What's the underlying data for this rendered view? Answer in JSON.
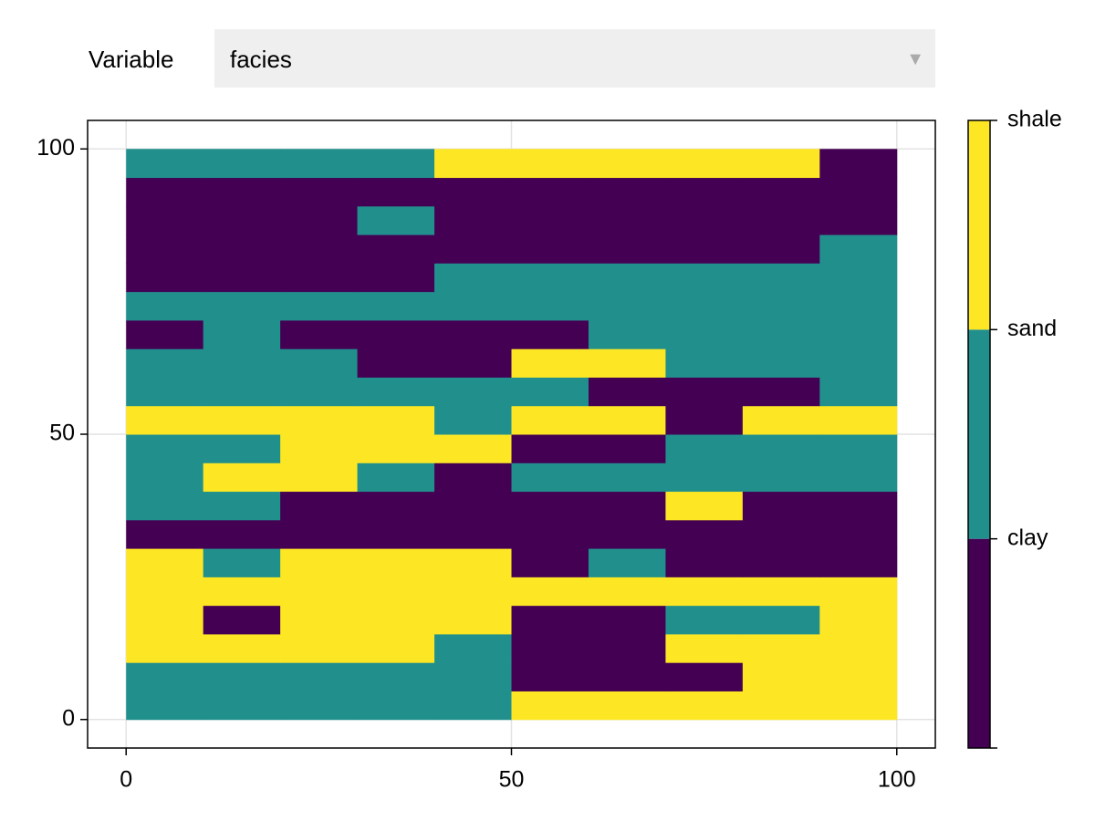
{
  "control": {
    "label": "Variable",
    "selected": "facies"
  },
  "chart_data": {
    "type": "heatmap",
    "x": [
      0,
      10,
      20,
      30,
      40,
      50,
      60,
      70,
      80,
      90,
      100
    ],
    "y": [
      0,
      5,
      10,
      15,
      20,
      25,
      30,
      35,
      40,
      45,
      50,
      55,
      60,
      65,
      70,
      75,
      80,
      85,
      90,
      95,
      100
    ],
    "z": [
      [
        2,
        2,
        2,
        2,
        2,
        3,
        3,
        3,
        3,
        3
      ],
      [
        2,
        2,
        2,
        2,
        2,
        1,
        1,
        1,
        3,
        3
      ],
      [
        3,
        3,
        3,
        3,
        2,
        1,
        1,
        3,
        3,
        3
      ],
      [
        3,
        1,
        3,
        3,
        3,
        1,
        1,
        2,
        2,
        3
      ],
      [
        3,
        3,
        3,
        3,
        3,
        3,
        3,
        3,
        3,
        3
      ],
      [
        3,
        2,
        3,
        3,
        3,
        1,
        2,
        1,
        1,
        1
      ],
      [
        1,
        1,
        1,
        1,
        1,
        1,
        1,
        1,
        1,
        1
      ],
      [
        2,
        2,
        1,
        1,
        1,
        1,
        1,
        3,
        1,
        1
      ],
      [
        2,
        3,
        3,
        2,
        1,
        2,
        2,
        2,
        2,
        2
      ],
      [
        2,
        2,
        3,
        3,
        3,
        1,
        1,
        2,
        2,
        2
      ],
      [
        3,
        3,
        3,
        3,
        2,
        3,
        3,
        1,
        3,
        3
      ],
      [
        2,
        2,
        2,
        2,
        2,
        2,
        1,
        1,
        1,
        2
      ],
      [
        2,
        2,
        2,
        1,
        1,
        3,
        3,
        2,
        2,
        2
      ],
      [
        1,
        2,
        1,
        1,
        1,
        1,
        2,
        2,
        2,
        2
      ],
      [
        2,
        2,
        2,
        2,
        2,
        2,
        2,
        2,
        2,
        2
      ],
      [
        1,
        1,
        1,
        1,
        2,
        2,
        2,
        2,
        2,
        2
      ],
      [
        1,
        1,
        1,
        1,
        1,
        1,
        1,
        1,
        1,
        2
      ],
      [
        1,
        1,
        1,
        2,
        1,
        1,
        1,
        1,
        1,
        1
      ],
      [
        1,
        1,
        1,
        1,
        1,
        1,
        1,
        1,
        1,
        1
      ],
      [
        2,
        2,
        2,
        2,
        3,
        3,
        3,
        3,
        3,
        1
      ]
    ],
    "levels": [
      1,
      2,
      3
    ],
    "colors": [
      "#440154",
      "#21908d",
      "#fde725"
    ],
    "xlim": [
      -5,
      105
    ],
    "ylim": [
      -5,
      105
    ],
    "xticks": [
      0,
      50,
      100
    ],
    "yticks": [
      0,
      50,
      100
    ],
    "grid": true,
    "clim": [
      0.5,
      3.5
    ],
    "cticks": [
      {
        "value": 1.5,
        "label": "clay"
      },
      {
        "value": 2.5,
        "label": "sand"
      },
      {
        "value": 3.5,
        "label": "shale"
      }
    ]
  }
}
